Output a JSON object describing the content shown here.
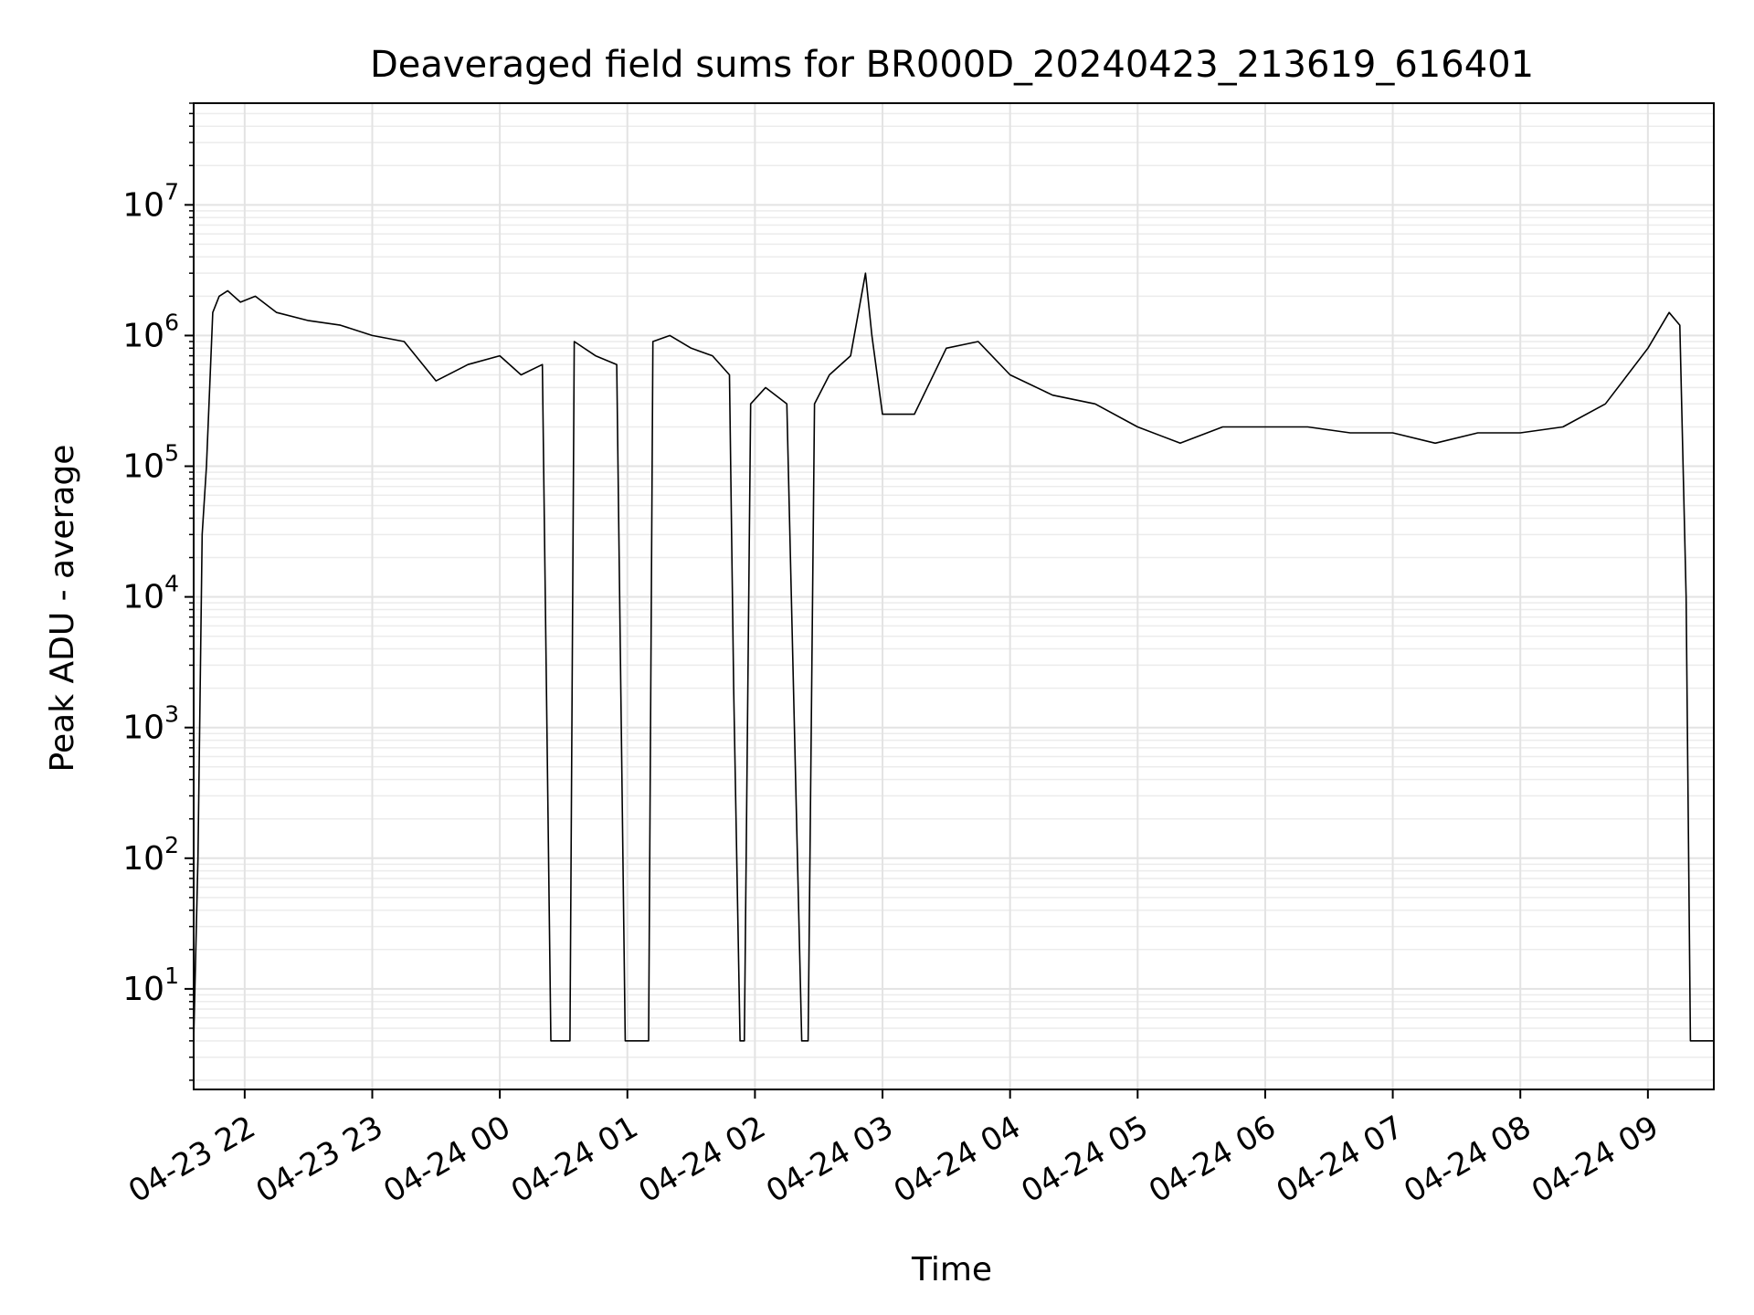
{
  "chart_data": {
    "type": "line",
    "title": "Deaveraged field sums for BR000D_20240423_213619_616401",
    "xlabel": "Time",
    "ylabel": "Peak ADU - average",
    "yscale": "log",
    "ylim": [
      1.7,
      60000000
    ],
    "xlim": [
      "04-23 21:36",
      "04-24 09:31"
    ],
    "grid": "on (major and minor)",
    "x_ticks": [
      "04-23 22",
      "04-23 23",
      "04-24 00",
      "04-24 01",
      "04-24 02",
      "04-24 03",
      "04-24 04",
      "04-24 05",
      "04-24 06",
      "04-24 07",
      "04-24 08",
      "04-24 09"
    ],
    "y_ticks": [
      {
        "base": "10",
        "exp": "1",
        "value": 10
      },
      {
        "base": "10",
        "exp": "2",
        "value": 100
      },
      {
        "base": "10",
        "exp": "3",
        "value": 1000
      },
      {
        "base": "10",
        "exp": "4",
        "value": 10000
      },
      {
        "base": "10",
        "exp": "5",
        "value": 100000
      },
      {
        "base": "10",
        "exp": "6",
        "value": 1000000
      },
      {
        "base": "10",
        "exp": "7",
        "value": 10000000
      }
    ],
    "line_color": "#000000",
    "series": [
      {
        "x": [
          "04-23 21:36",
          "04-23 21:38",
          "04-23 21:40",
          "04-23 21:42",
          "04-23 21:45",
          "04-23 21:48",
          "04-23 21:52",
          "04-23 21:58",
          "04-23 22:05",
          "04-23 22:15",
          "04-23 22:30",
          "04-23 22:45",
          "04-23 23:00",
          "04-23 23:15",
          "04-23 23:30",
          "04-23 23:45",
          "04-24 00:00",
          "04-24 00:10",
          "04-24 00:20",
          "04-24 00:24",
          "04-24 00:25",
          "04-24 00:33",
          "04-24 00:35",
          "04-24 00:45",
          "04-24 00:55",
          "04-24 00:59",
          "04-24 01:00",
          "04-24 01:10",
          "04-24 01:12",
          "04-24 01:20",
          "04-24 01:30",
          "04-24 01:40",
          "04-24 01:48",
          "04-24 01:50",
          "04-24 01:53",
          "04-24 01:55",
          "04-24 01:58",
          "04-24 02:05",
          "04-24 02:15",
          "04-24 02:22",
          "04-24 02:25",
          "04-24 02:28",
          "04-24 02:35",
          "04-24 02:45",
          "04-24 02:52",
          "04-24 02:55",
          "04-24 03:00",
          "04-24 03:15",
          "04-24 03:30",
          "04-24 03:45",
          "04-24 04:00",
          "04-24 04:20",
          "04-24 04:40",
          "04-24 05:00",
          "04-24 05:20",
          "04-24 05:40",
          "04-24 06:00",
          "04-24 06:20",
          "04-24 06:40",
          "04-24 07:00",
          "04-24 07:20",
          "04-24 07:40",
          "04-24 08:00",
          "04-24 08:20",
          "04-24 08:40",
          "04-24 09:00",
          "04-24 09:10",
          "04-24 09:15",
          "04-24 09:18",
          "04-24 09:20",
          "04-24 09:31"
        ],
        "y": [
          4,
          100,
          30000,
          100000,
          1500000,
          2000000,
          2200000,
          1800000,
          2000000,
          1500000,
          1300000,
          1200000,
          1000000,
          900000,
          450000,
          600000,
          700000,
          500000,
          600000,
          4,
          4,
          4,
          900000,
          700000,
          600000,
          4,
          4,
          4,
          900000,
          1000000,
          800000,
          700000,
          500000,
          2000,
          4,
          4,
          300000,
          400000,
          300000,
          4,
          4,
          300000,
          500000,
          700000,
          3000000,
          1000000,
          250000,
          250000,
          800000,
          900000,
          500000,
          350000,
          300000,
          200000,
          150000,
          200000,
          200000,
          200000,
          180000,
          180000,
          150000,
          180000,
          180000,
          200000,
          300000,
          800000,
          1500000,
          1200000,
          10000,
          4,
          4
        ]
      }
    ]
  }
}
